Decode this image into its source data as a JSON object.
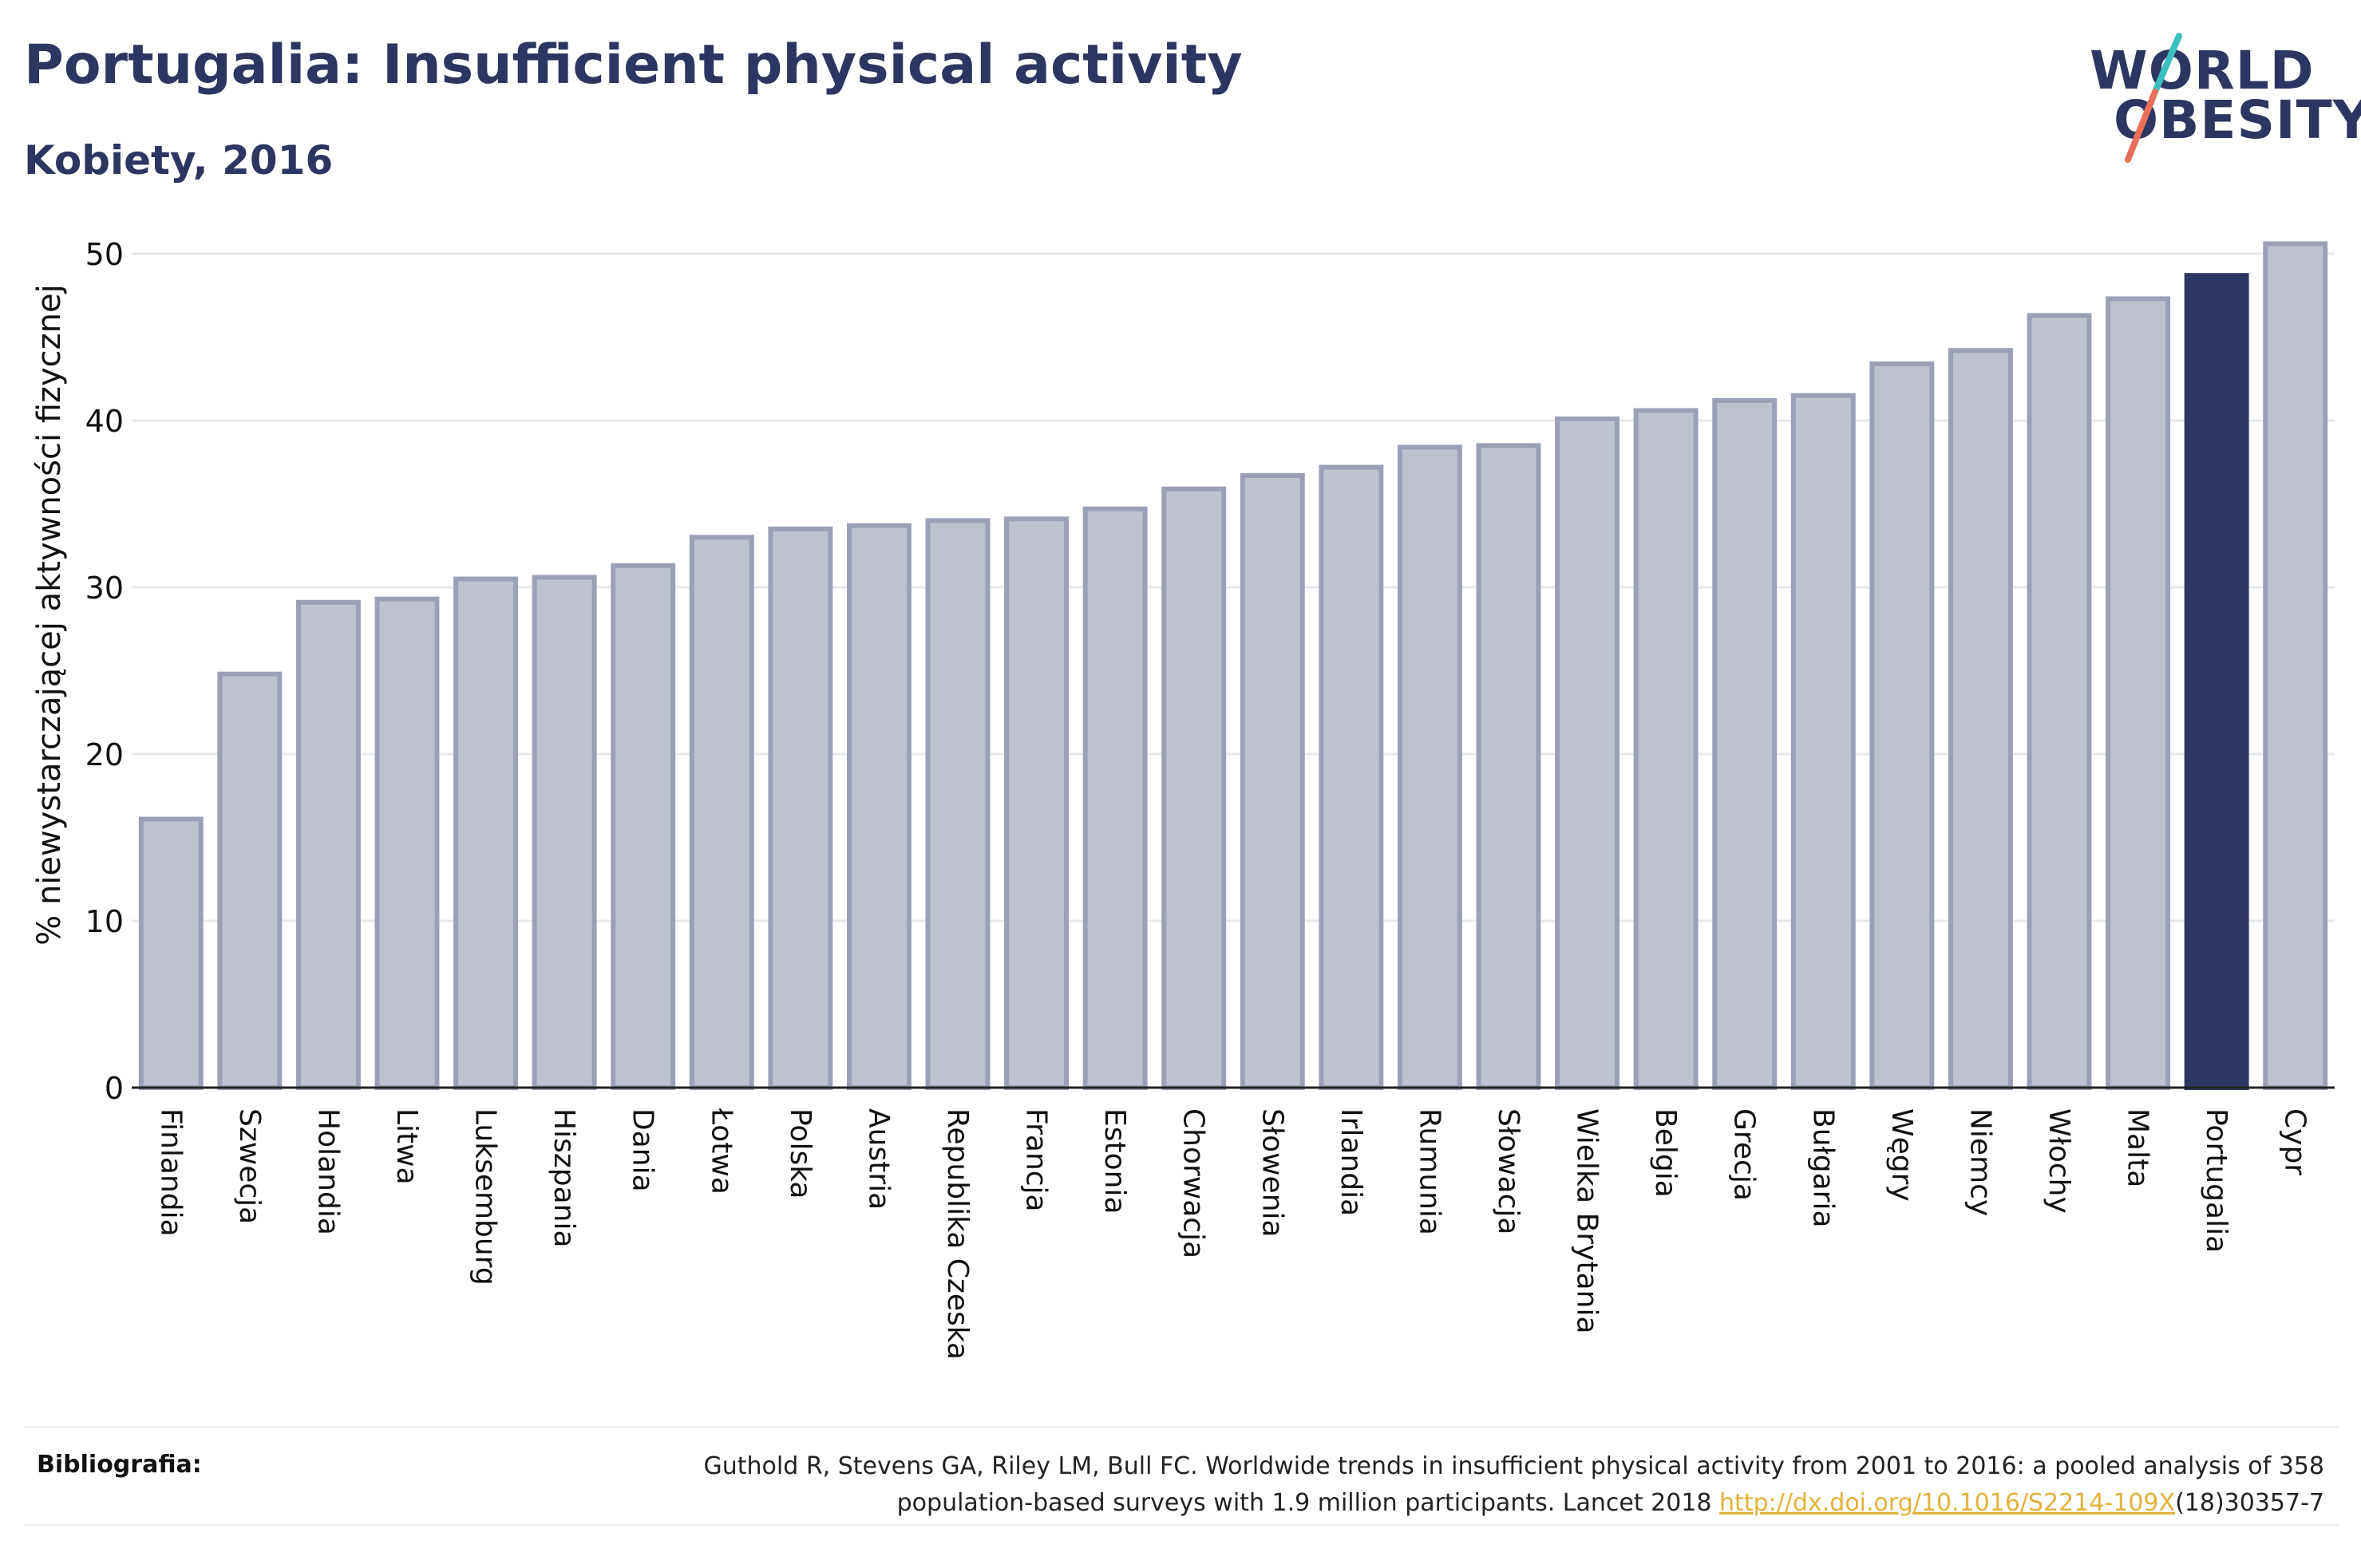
{
  "header": {
    "title": "Portugalia: Insufficient physical activity",
    "subtitle": "Kobiety, 2016"
  },
  "logo": {
    "line1": "WORLD",
    "line2": "OBESITY",
    "slash_colors": [
      "#3bbfbf",
      "#e8705a"
    ]
  },
  "footer": {
    "label": "Bibliografia:",
    "text_line1": "Guthold R, Stevens GA, Riley LM, Bull FC. Worldwide trends in insufficient physical activity from 2001 to 2016: a pooled analysis of 358",
    "text_line2_before": "population-based surveys with 1.9 million participants. Lancet 2018 ",
    "link_text": "http://dx.doi.org/10.1016/S2214-109X",
    "text_line2_after": "(18)30357-7"
  },
  "colors": {
    "bar": "#bec2d0",
    "bar_stroke": "#9aa0b8",
    "highlight": "#2d3561",
    "grid": "#e6e8ec",
    "axis": "#222222"
  },
  "chart_data": {
    "type": "bar",
    "title": "Portugalia: Insufficient physical activity",
    "subtitle": "Kobiety, 2016",
    "xlabel": "",
    "ylabel": "% niewystarczającej aktywności fizycznej",
    "ylim": [
      0,
      52
    ],
    "yticks": [
      0,
      10,
      20,
      30,
      40,
      50
    ],
    "grid": true,
    "highlight": "Portugalia",
    "categories": [
      "Finlandia",
      "Szwecja",
      "Holandia",
      "Litwa",
      "Luksemburg",
      "Hiszpania",
      "Dania",
      "Łotwa",
      "Polska",
      "Austria",
      "Republika Czeska",
      "Francja",
      "Estonia",
      "Chorwacja",
      "Słowenia",
      "Irlandia",
      "Rumunia",
      "Słowacja",
      "Wielka Brytania",
      "Belgia",
      "Grecja",
      "Bułgaria",
      "Węgry",
      "Niemcy",
      "Włochy",
      "Malta",
      "Portugalia",
      "Cypr"
    ],
    "values": [
      16.1,
      24.8,
      29.1,
      29.3,
      30.5,
      30.6,
      31.3,
      33.0,
      33.5,
      33.7,
      34.0,
      34.1,
      34.7,
      35.9,
      36.7,
      37.2,
      38.4,
      38.5,
      40.1,
      40.6,
      41.2,
      41.5,
      43.4,
      44.2,
      46.3,
      47.3,
      48.7,
      50.6
    ]
  }
}
